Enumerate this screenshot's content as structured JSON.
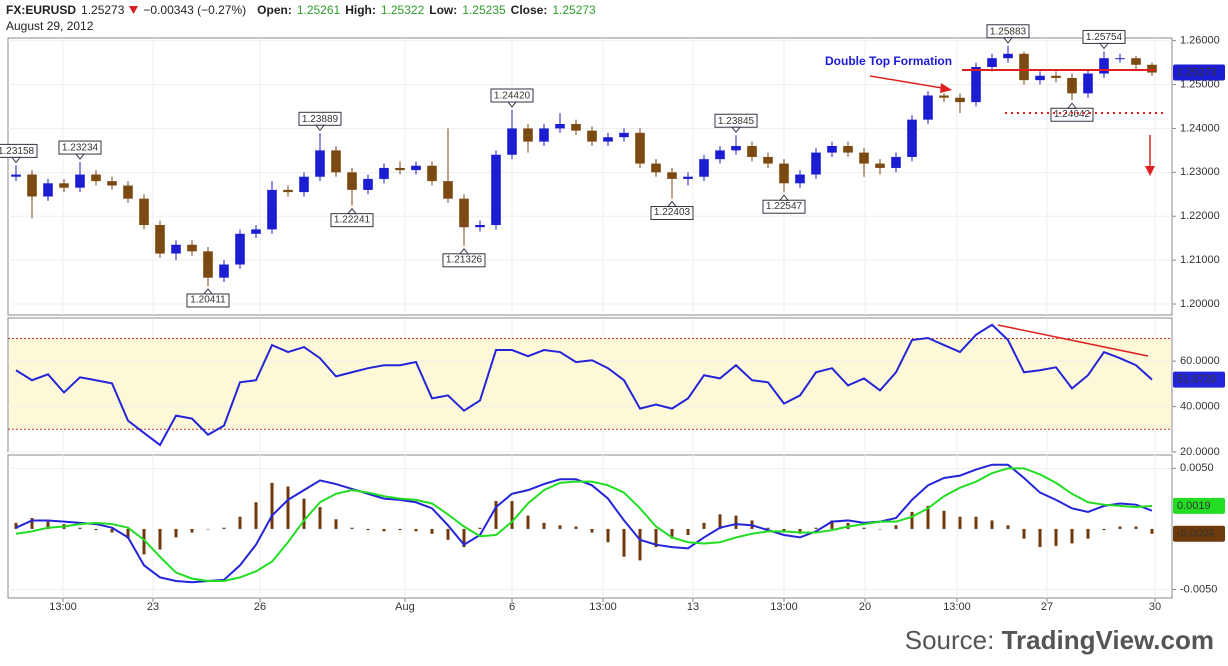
{
  "header": {
    "symbol": "FX:EURUSD",
    "price": "1.25273",
    "change": "−0.00343 (−0.27%)",
    "open_label": "Open:",
    "open": "1.25261",
    "high_label": "High:",
    "high": "1.25322",
    "low_label": "Low:",
    "low": "1.25235",
    "close_label": "Close:",
    "close": "1.25273",
    "date": "August 29, 2012"
  },
  "annotation": "Double Top Formation",
  "source": {
    "prefix": "Source:",
    "site": "TradingView.com"
  },
  "chart_data": [
    {
      "type": "candlestick",
      "up_color": "#1c1cd0",
      "down_color": "#7a4a12",
      "ylim": [
        1.1975,
        1.2606
      ],
      "yticks": [
        {
          "value": 1.2,
          "label": "1.20000"
        },
        {
          "value": 1.21,
          "label": "1.21000"
        },
        {
          "value": 1.22,
          "label": "1.22000"
        },
        {
          "value": 1.23,
          "label": "1.23000"
        },
        {
          "value": 1.24,
          "label": "1.24000"
        },
        {
          "value": 1.25,
          "label": "1.25000"
        },
        {
          "value": 1.26,
          "label": "1.26000"
        }
      ],
      "open": [
        1.229,
        1.2295,
        1.2245,
        1.2275,
        1.2265,
        1.2295,
        1.228,
        1.227,
        1.224,
        1.218,
        1.2115,
        1.2135,
        1.212,
        1.206,
        1.209,
        1.216,
        1.217,
        1.226,
        1.2255,
        1.229,
        1.235,
        1.23,
        1.226,
        1.2285,
        1.231,
        1.2305,
        1.2315,
        1.228,
        1.224,
        1.2175,
        1.218,
        1.234,
        1.24,
        1.237,
        1.24,
        1.241,
        1.2395,
        1.237,
        1.238,
        1.239,
        1.232,
        1.23,
        1.2285,
        1.229,
        1.233,
        1.235,
        1.236,
        1.2335,
        1.232,
        1.2275,
        1.2295,
        1.2345,
        1.236,
        1.2345,
        1.232,
        1.231,
        1.2335,
        1.242,
        1.2475,
        1.247,
        1.246,
        1.254,
        1.256,
        1.257,
        1.251,
        1.252,
        1.2515,
        1.248,
        1.2525,
        1.256,
        1.256,
        1.2545
      ],
      "high": [
        1.23158,
        1.2305,
        1.2285,
        1.2285,
        1.23234,
        1.2305,
        1.229,
        1.228,
        1.225,
        1.219,
        1.2145,
        1.2145,
        1.213,
        1.21,
        1.217,
        1.218,
        1.228,
        1.227,
        1.23,
        1.23889,
        1.236,
        1.231,
        1.2295,
        1.232,
        1.2325,
        1.2325,
        1.2325,
        1.24,
        1.225,
        1.219,
        1.235,
        1.2442,
        1.241,
        1.241,
        1.2435,
        1.242,
        1.2405,
        1.239,
        1.24,
        1.24,
        1.233,
        1.231,
        1.23,
        1.234,
        1.236,
        1.23845,
        1.237,
        1.2345,
        1.233,
        1.2305,
        1.2355,
        1.237,
        1.237,
        1.2355,
        1.233,
        1.2345,
        1.243,
        1.2485,
        1.248,
        1.248,
        1.255,
        1.257,
        1.25883,
        1.2575,
        1.253,
        1.253,
        1.2525,
        1.2535,
        1.25754,
        1.257,
        1.2565,
        1.255
      ],
      "low": [
        1.228,
        1.2195,
        1.2235,
        1.2255,
        1.2255,
        1.227,
        1.226,
        1.223,
        1.217,
        1.2105,
        1.21,
        1.211,
        1.20411,
        1.205,
        1.208,
        1.215,
        1.216,
        1.2245,
        1.2245,
        1.228,
        1.229,
        1.22241,
        1.225,
        1.2275,
        1.2295,
        1.2295,
        1.227,
        1.223,
        1.21326,
        1.2165,
        1.217,
        1.233,
        1.2345,
        1.236,
        1.239,
        1.2385,
        1.236,
        1.236,
        1.237,
        1.231,
        1.229,
        1.22403,
        1.227,
        1.228,
        1.232,
        1.234,
        1.2325,
        1.231,
        1.22547,
        1.2265,
        1.2285,
        1.2335,
        1.2335,
        1.229,
        1.2295,
        1.23,
        1.2325,
        1.241,
        1.246,
        1.2435,
        1.245,
        1.253,
        1.255,
        1.25,
        1.25,
        1.2505,
        1.24642,
        1.247,
        1.2515,
        1.255,
        1.2535,
        1.252
      ],
      "close": [
        1.2295,
        1.2245,
        1.2275,
        1.2265,
        1.2295,
        1.228,
        1.227,
        1.224,
        1.218,
        1.2115,
        1.2135,
        1.212,
        1.206,
        1.209,
        1.216,
        1.217,
        1.226,
        1.2255,
        1.229,
        1.235,
        1.23,
        1.226,
        1.2285,
        1.231,
        1.2305,
        1.2315,
        1.228,
        1.224,
        1.2175,
        1.218,
        1.234,
        1.24,
        1.237,
        1.24,
        1.241,
        1.2395,
        1.237,
        1.238,
        1.239,
        1.232,
        1.23,
        1.2285,
        1.229,
        1.233,
        1.235,
        1.236,
        1.2335,
        1.232,
        1.2275,
        1.2295,
        1.2345,
        1.236,
        1.2345,
        1.232,
        1.231,
        1.2335,
        1.242,
        1.2475,
        1.247,
        1.246,
        1.254,
        1.256,
        1.257,
        1.251,
        1.252,
        1.2515,
        1.248,
        1.2525,
        1.256,
        1.256,
        1.2545,
        1.25273
      ],
      "high_labels": [
        "1.23158",
        null,
        null,
        null,
        "1.23234",
        null,
        null,
        null,
        null,
        null,
        null,
        null,
        null,
        null,
        null,
        null,
        null,
        null,
        null,
        "1.23889",
        null,
        null,
        null,
        null,
        null,
        null,
        null,
        null,
        null,
        null,
        null,
        "1.24420",
        null,
        null,
        null,
        null,
        null,
        null,
        null,
        null,
        null,
        null,
        null,
        null,
        null,
        "1.23845",
        null,
        null,
        null,
        null,
        null,
        null,
        null,
        null,
        null,
        null,
        null,
        null,
        null,
        null,
        null,
        null,
        "1.25883",
        null,
        null,
        null,
        null,
        null,
        "1.25754",
        null,
        null,
        null
      ],
      "low_labels": [
        null,
        null,
        null,
        null,
        null,
        null,
        null,
        null,
        null,
        null,
        null,
        null,
        "1.20411",
        null,
        null,
        null,
        null,
        null,
        null,
        null,
        null,
        "1.22241",
        null,
        null,
        null,
        null,
        null,
        null,
        "1.21326",
        null,
        null,
        null,
        null,
        null,
        null,
        null,
        null,
        null,
        null,
        null,
        null,
        "1.22403",
        null,
        null,
        null,
        null,
        null,
        null,
        "1.22547",
        null,
        null,
        null,
        null,
        null,
        null,
        null,
        null,
        null,
        null,
        null,
        null,
        null,
        null,
        null,
        null,
        null,
        "1.24642",
        null,
        null,
        null,
        null,
        null
      ]
    },
    {
      "type": "line",
      "ylim": [
        20,
        79
      ],
      "band": [
        30,
        70
      ],
      "band_color": "#fdf9d8",
      "yticks": [
        {
          "value": 20,
          "label": "20.0000"
        },
        {
          "value": 40,
          "label": "40.0000"
        },
        {
          "value": 60,
          "label": "60.0000"
        }
      ],
      "series": [
        {
          "color": "#2424d8",
          "last_label": "51.8720",
          "values": [
            56.0,
            51.6,
            54.2,
            46.2,
            52.9,
            51.6,
            50.2,
            33.8,
            28.4,
            23.1,
            36.0,
            34.7,
            27.6,
            31.6,
            50.7,
            51.6,
            67.1,
            64.0,
            66.2,
            61.3,
            53.3,
            55.1,
            56.9,
            58.2,
            58.2,
            59.6,
            43.6,
            44.9,
            38.2,
            42.7,
            64.9,
            64.9,
            62.2,
            64.9,
            64.0,
            59.6,
            60.4,
            56.9,
            51.6,
            39.1,
            40.9,
            39.1,
            43.6,
            53.8,
            52.4,
            58.2,
            51.6,
            50.7,
            41.3,
            44.9,
            55.1,
            56.9,
            49.3,
            52.4,
            47.1,
            55.1,
            69.3,
            70.2,
            67.1,
            64.0,
            71.6,
            76.0,
            69.3,
            55.1,
            56.0,
            57.3,
            48.0,
            53.8,
            64.0,
            61.3,
            58.2,
            51.872
          ]
        }
      ]
    },
    {
      "type": "line",
      "ylim": [
        -0.0057,
        0.0061
      ],
      "yticks": [
        {
          "value": -0.005,
          "label": "-0.0050"
        },
        {
          "value": 0.005,
          "label": "0.0050"
        }
      ],
      "xlim": [
        -0.5,
        72.25
      ],
      "xticks": [
        {
          "value": 2.94,
          "label": "13:00"
        },
        {
          "value": 8.56,
          "label": "23"
        },
        {
          "value": 15.25,
          "label": "26"
        },
        {
          "value": 24.31,
          "label": "Aug"
        },
        {
          "value": 31,
          "label": "6"
        },
        {
          "value": 36.69,
          "label": "13:00"
        },
        {
          "value": 42.31,
          "label": "13"
        },
        {
          "value": 48,
          "label": "13:00"
        },
        {
          "value": 53.06,
          "label": "20"
        },
        {
          "value": 58.81,
          "label": "13:00"
        },
        {
          "value": 64.44,
          "label": "27"
        },
        {
          "value": 71.19,
          "label": "30"
        }
      ],
      "series": [
        {
          "type": "bar",
          "color": "#6e3a0c",
          "show_last": true,
          "values": [
            0.0005,
            0.0009,
            0.0006,
            0.0004,
            0.0001,
            -0.0001,
            -0.0003,
            -0.0008,
            -0.0021,
            -0.0017,
            -0.0007,
            -0.0003,
            0,
            0.0001,
            0.001,
            0.0022,
            0.0038,
            0.0035,
            0.0025,
            0.0018,
            0.0008,
            0.0001,
            -0.0001,
            -0.0002,
            -0.0001,
            -0.0002,
            -0.0004,
            -0.0009,
            -0.0015,
            0.0001,
            0.0023,
            0.0023,
            0.0011,
            0.0005,
            0.0003,
            0.0002,
            -0.0003,
            -0.0011,
            -0.0023,
            -0.0026,
            -0.0015,
            -0.0008,
            -0.0005,
            0.0005,
            0.0012,
            0.0011,
            0.0007,
            0.0001,
            -0.0003,
            -0.0004,
            0.0001,
            0.0007,
            0.0005,
            0.0001,
            0,
            0.0003,
            0.0014,
            0.0019,
            0.0015,
            0.001,
            0.001,
            0.0007,
            0.0003,
            -0.0008,
            -0.0015,
            -0.0014,
            -0.0012,
            -0.0008,
            -0.0001,
            0.0002,
            0.0002,
            -0.0004
          ]
        },
        {
          "type": "line",
          "color": "#2424d8",
          "show_last": false,
          "values": [
            0.0001,
            0.0007,
            0.0007,
            0.0006,
            0.0005,
            0.0004,
            0.0001,
            -0.0007,
            -0.003,
            -0.004,
            -0.0043,
            -0.0044,
            -0.0043,
            -0.0042,
            -0.003,
            -0.0013,
            0.0011,
            0.0024,
            0.0032,
            0.004,
            0.0037,
            0.0033,
            0.0029,
            0.0025,
            0.0024,
            0.0022,
            0.0017,
            0.0003,
            -0.0013,
            -0.0005,
            0.0018,
            0.0029,
            0.0032,
            0.0037,
            0.0041,
            0.0041,
            0.0036,
            0.0025,
            0.0007,
            -0.0009,
            -0.0013,
            -0.0015,
            -0.0016,
            -0.0007,
            0.0001,
            0.0004,
            0.0003,
            -0.0001,
            -0.0005,
            -0.0007,
            -0.0002,
            0.0006,
            0.0007,
            0.0005,
            0.0006,
            0.0009,
            0.0024,
            0.0036,
            0.0042,
            0.0044,
            0.0049,
            0.0053,
            0.0053,
            0.0042,
            0.003,
            0.0024,
            0.0017,
            0.0014,
            0.0019,
            0.0021,
            0.002,
            0.0015
          ]
        },
        {
          "type": "line",
          "color": "#22dd22",
          "show_last": true,
          "values": [
            -0.0004,
            -0.0002,
            0.0001,
            0.0002,
            0.0004,
            0.0005,
            0.0004,
            0.0001,
            -0.0009,
            -0.0023,
            -0.0036,
            -0.0041,
            -0.0043,
            -0.0043,
            -0.004,
            -0.0035,
            -0.0027,
            -0.0011,
            0.0007,
            0.0022,
            0.0029,
            0.0032,
            0.003,
            0.0027,
            0.0025,
            0.0024,
            0.0021,
            0.0012,
            0.0002,
            -0.0006,
            -0.0005,
            0.0006,
            0.0021,
            0.0032,
            0.0038,
            0.0039,
            0.0039,
            0.0036,
            0.003,
            0.0017,
            0.0002,
            -0.0007,
            -0.0011,
            -0.0012,
            -0.0011,
            -0.0007,
            -0.0004,
            -0.0002,
            -0.0002,
            -0.0003,
            -0.0003,
            -0.0001,
            0.0002,
            0.0004,
            0.0006,
            0.0006,
            0.001,
            0.0017,
            0.0027,
            0.0034,
            0.0039,
            0.0046,
            0.005,
            0.005,
            0.0045,
            0.0038,
            0.0029,
            0.0022,
            0.002,
            0.0019,
            0.0018,
            0.0019
          ]
        }
      ]
    }
  ]
}
